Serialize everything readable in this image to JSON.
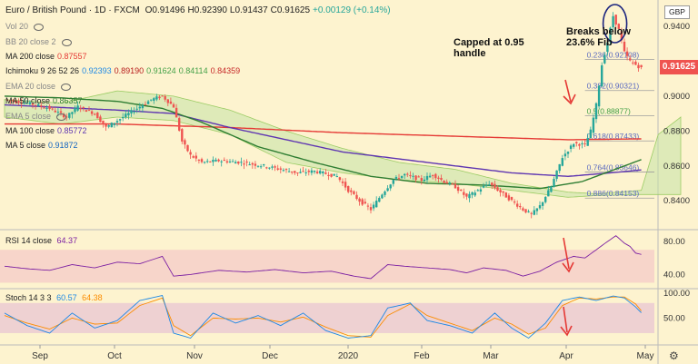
{
  "header": {
    "symbol": "Euro / British Pound · 1D · FXCM",
    "ohlc": [
      {
        "k": "O",
        "v": "0.91496"
      },
      {
        "k": "H",
        "v": "0.92390"
      },
      {
        "k": "L",
        "v": "0.91437"
      },
      {
        "k": "C",
        "v": "0.91625"
      },
      {
        "k": "",
        "v": "+0.00129 (+0.14%)"
      }
    ]
  },
  "currency_badge": "GBP",
  "last_price": "0.91625",
  "indicators": [
    {
      "name": "Vol 20",
      "values": [],
      "color": "#888888"
    },
    {
      "name": "BB 20 close 2",
      "values": [],
      "color": "#888888"
    },
    {
      "name": "MA 200 close",
      "values": [
        "0.87557"
      ],
      "color": "#e53935"
    },
    {
      "name": "Ichimoku 9 26 52 26",
      "values": [
        "0.92393",
        "0.89190",
        "0.91624",
        "0.84114",
        "0.84359"
      ],
      "colors": [
        "#1e88e5",
        "#b71c1c",
        "#43a047",
        "#43a047",
        "#c62828"
      ]
    },
    {
      "name": "EMA 20 close",
      "values": [],
      "color": "#888888"
    },
    {
      "name": "MA 50 close",
      "values": [
        "0.86357"
      ],
      "color": "#2e7d32"
    },
    {
      "name": "EMA 5 close",
      "values": [],
      "color": "#888888"
    },
    {
      "name": "MA 100 close",
      "values": [
        "0.85772"
      ],
      "color": "#5e35b1"
    },
    {
      "name": "MA 5 close",
      "values": [
        "0.91872"
      ],
      "color": "#1565c0"
    }
  ],
  "annotations": {
    "capped": "Capped at 0.95\nhandle",
    "breaks": "Breaks below\n23.6% Fib"
  },
  "colors": {
    "up": "#26a69a",
    "down": "#ef5350",
    "background": "#fdf3cf",
    "cloud": "#c5e1a5",
    "ma200": "#e53935",
    "ma100": "#5e35b1",
    "ma50": "#2e7d32",
    "rsi_line": "#7b1fa2",
    "stoch_k": "#1e88e5",
    "stoch_d": "#fb8c00",
    "arrow": "#e53935"
  },
  "chart_data": {
    "type": "candlestick",
    "title": "Euro / British Pound",
    "x_labels": [
      "Sep",
      "Oct",
      "Nov",
      "Dec",
      "2020",
      "Feb",
      "Mar",
      "Apr",
      "May"
    ],
    "y_ticks": [
      0.84,
      0.86,
      0.88,
      0.9,
      0.94
    ],
    "ylim": [
      0.825,
      0.952
    ],
    "price_path": [
      [
        0,
        0.898
      ],
      [
        8,
        0.896
      ],
      [
        16,
        0.893
      ],
      [
        22,
        0.888
      ],
      [
        26,
        0.894
      ],
      [
        32,
        0.89
      ],
      [
        36,
        0.882
      ],
      [
        40,
        0.886
      ],
      [
        46,
        0.892
      ],
      [
        52,
        0.898
      ],
      [
        56,
        0.9
      ],
      [
        60,
        0.894
      ],
      [
        63,
        0.874
      ],
      [
        66,
        0.866
      ],
      [
        70,
        0.862
      ],
      [
        76,
        0.863
      ],
      [
        84,
        0.862
      ],
      [
        92,
        0.86
      ],
      [
        98,
        0.858
      ],
      [
        104,
        0.856
      ],
      [
        110,
        0.857
      ],
      [
        118,
        0.854
      ],
      [
        122,
        0.846
      ],
      [
        126,
        0.84
      ],
      [
        130,
        0.835
      ],
      [
        134,
        0.844
      ],
      [
        138,
        0.852
      ],
      [
        142,
        0.855
      ],
      [
        148,
        0.852
      ],
      [
        152,
        0.855
      ],
      [
        156,
        0.851
      ],
      [
        160,
        0.848
      ],
      [
        164,
        0.842
      ],
      [
        168,
        0.846
      ],
      [
        172,
        0.85
      ],
      [
        176,
        0.845
      ],
      [
        180,
        0.84
      ],
      [
        184,
        0.835
      ],
      [
        187,
        0.832
      ],
      [
        190,
        0.837
      ],
      [
        194,
        0.848
      ],
      [
        198,
        0.865
      ],
      [
        202,
        0.873
      ],
      [
        206,
        0.872
      ],
      [
        208,
        0.88
      ],
      [
        210,
        0.895
      ],
      [
        212,
        0.918
      ],
      [
        214,
        0.931
      ],
      [
        216,
        0.946
      ],
      [
        218,
        0.938
      ],
      [
        220,
        0.925
      ],
      [
        222,
        0.92
      ],
      [
        224,
        0.918
      ],
      [
        226,
        0.916
      ]
    ],
    "fib_levels": [
      {
        "label": "0.236(0.92108)",
        "value": 0.92108,
        "color": "#5c6bc0"
      },
      {
        "label": "0.382(0.90321)",
        "value": 0.90321,
        "color": "#5c6bc0"
      },
      {
        "label": "0.5(0.88877)",
        "value": 0.88877,
        "color": "#43a047"
      },
      {
        "label": "0.618(0.87433)",
        "value": 0.87433,
        "color": "#5c6bc0"
      },
      {
        "label": "0.764(0.85646)",
        "value": 0.85646,
        "color": "#5c6bc0"
      },
      {
        "label": "0.886(0.84153)",
        "value": 0.84153,
        "color": "#5c6bc0"
      }
    ],
    "ma200": [
      [
        0,
        0.884
      ],
      [
        40,
        0.884
      ],
      [
        80,
        0.882
      ],
      [
        120,
        0.879
      ],
      [
        160,
        0.877
      ],
      [
        200,
        0.875
      ],
      [
        226,
        0.8755
      ]
    ],
    "ma100": [
      [
        0,
        0.895
      ],
      [
        40,
        0.892
      ],
      [
        60,
        0.89
      ],
      [
        80,
        0.882
      ],
      [
        100,
        0.875
      ],
      [
        120,
        0.868
      ],
      [
        140,
        0.864
      ],
      [
        160,
        0.86
      ],
      [
        180,
        0.856
      ],
      [
        200,
        0.854
      ],
      [
        215,
        0.856
      ],
      [
        226,
        0.8577
      ]
    ],
    "ma50": [
      [
        0,
        0.9
      ],
      [
        20,
        0.899
      ],
      [
        40,
        0.897
      ],
      [
        56,
        0.893
      ],
      [
        70,
        0.885
      ],
      [
        90,
        0.871
      ],
      [
        110,
        0.862
      ],
      [
        130,
        0.854
      ],
      [
        150,
        0.85
      ],
      [
        170,
        0.849
      ],
      [
        190,
        0.847
      ],
      [
        205,
        0.851
      ],
      [
        226,
        0.8636
      ]
    ],
    "cloud_upper": [
      [
        0,
        0.898
      ],
      [
        20,
        0.896
      ],
      [
        40,
        0.903
      ],
      [
        60,
        0.9
      ],
      [
        80,
        0.892
      ],
      [
        100,
        0.88
      ],
      [
        120,
        0.87
      ],
      [
        140,
        0.862
      ],
      [
        160,
        0.858
      ],
      [
        180,
        0.85
      ],
      [
        200,
        0.845
      ],
      [
        210,
        0.844
      ],
      [
        226,
        0.846
      ],
      [
        232,
        0.878
      ],
      [
        240,
        0.888
      ]
    ],
    "cloud_lower": [
      [
        0,
        0.888
      ],
      [
        20,
        0.884
      ],
      [
        40,
        0.888
      ],
      [
        60,
        0.886
      ],
      [
        80,
        0.878
      ],
      [
        100,
        0.862
      ],
      [
        120,
        0.856
      ],
      [
        140,
        0.852
      ],
      [
        160,
        0.85
      ],
      [
        180,
        0.846
      ],
      [
        200,
        0.842
      ],
      [
        210,
        0.843
      ],
      [
        226,
        0.8436
      ],
      [
        232,
        0.8436
      ],
      [
        240,
        0.8436
      ]
    ],
    "rsi": {
      "name": "RSI 14 close",
      "value": "64.37",
      "ticks": [
        40.0,
        80.0
      ],
      "range": [
        25,
        90
      ],
      "band": [
        30,
        70
      ],
      "path": [
        [
          0,
          50
        ],
        [
          8,
          47
        ],
        [
          16,
          45
        ],
        [
          24,
          52
        ],
        [
          32,
          48
        ],
        [
          40,
          55
        ],
        [
          48,
          53
        ],
        [
          56,
          62
        ],
        [
          60,
          38
        ],
        [
          66,
          40
        ],
        [
          76,
          45
        ],
        [
          86,
          43
        ],
        [
          96,
          46
        ],
        [
          106,
          42
        ],
        [
          116,
          44
        ],
        [
          124,
          38
        ],
        [
          130,
          35
        ],
        [
          136,
          52
        ],
        [
          142,
          50
        ],
        [
          150,
          48
        ],
        [
          158,
          46
        ],
        [
          164,
          42
        ],
        [
          170,
          48
        ],
        [
          178,
          45
        ],
        [
          184,
          38
        ],
        [
          190,
          44
        ],
        [
          196,
          55
        ],
        [
          202,
          62
        ],
        [
          206,
          60
        ],
        [
          210,
          70
        ],
        [
          214,
          80
        ],
        [
          217,
          87
        ],
        [
          220,
          78
        ],
        [
          222,
          74
        ],
        [
          224,
          66
        ],
        [
          226,
          64.37
        ]
      ]
    },
    "stoch": {
      "name": "Stoch 14 3 3",
      "k": "60.57",
      "d": "64.38",
      "ticks": [
        50.0,
        100.0
      ],
      "range": [
        0,
        105
      ],
      "band": [
        20,
        80
      ],
      "k_path": [
        [
          0,
          60
        ],
        [
          8,
          35
        ],
        [
          16,
          20
        ],
        [
          24,
          60
        ],
        [
          32,
          30
        ],
        [
          40,
          45
        ],
        [
          48,
          85
        ],
        [
          56,
          95
        ],
        [
          60,
          20
        ],
        [
          66,
          10
        ],
        [
          74,
          60
        ],
        [
          82,
          40
        ],
        [
          90,
          55
        ],
        [
          98,
          35
        ],
        [
          106,
          60
        ],
        [
          114,
          25
        ],
        [
          122,
          10
        ],
        [
          130,
          15
        ],
        [
          136,
          70
        ],
        [
          144,
          80
        ],
        [
          150,
          45
        ],
        [
          158,
          35
        ],
        [
          166,
          20
        ],
        [
          174,
          60
        ],
        [
          180,
          30
        ],
        [
          186,
          10
        ],
        [
          192,
          40
        ],
        [
          198,
          85
        ],
        [
          204,
          92
        ],
        [
          210,
          85
        ],
        [
          216,
          94
        ],
        [
          220,
          90
        ],
        [
          224,
          72
        ],
        [
          226,
          60.57
        ]
      ],
      "d_path": [
        [
          0,
          55
        ],
        [
          8,
          40
        ],
        [
          16,
          28
        ],
        [
          24,
          50
        ],
        [
          32,
          38
        ],
        [
          40,
          40
        ],
        [
          48,
          75
        ],
        [
          56,
          90
        ],
        [
          60,
          35
        ],
        [
          66,
          15
        ],
        [
          74,
          50
        ],
        [
          82,
          48
        ],
        [
          90,
          50
        ],
        [
          98,
          42
        ],
        [
          106,
          52
        ],
        [
          114,
          32
        ],
        [
          122,
          15
        ],
        [
          130,
          12
        ],
        [
          136,
          55
        ],
        [
          144,
          78
        ],
        [
          150,
          55
        ],
        [
          158,
          40
        ],
        [
          166,
          25
        ],
        [
          174,
          50
        ],
        [
          180,
          38
        ],
        [
          186,
          18
        ],
        [
          192,
          30
        ],
        [
          198,
          75
        ],
        [
          204,
          90
        ],
        [
          210,
          88
        ],
        [
          216,
          92
        ],
        [
          220,
          92
        ],
        [
          224,
          78
        ],
        [
          226,
          64.38
        ]
      ]
    }
  }
}
